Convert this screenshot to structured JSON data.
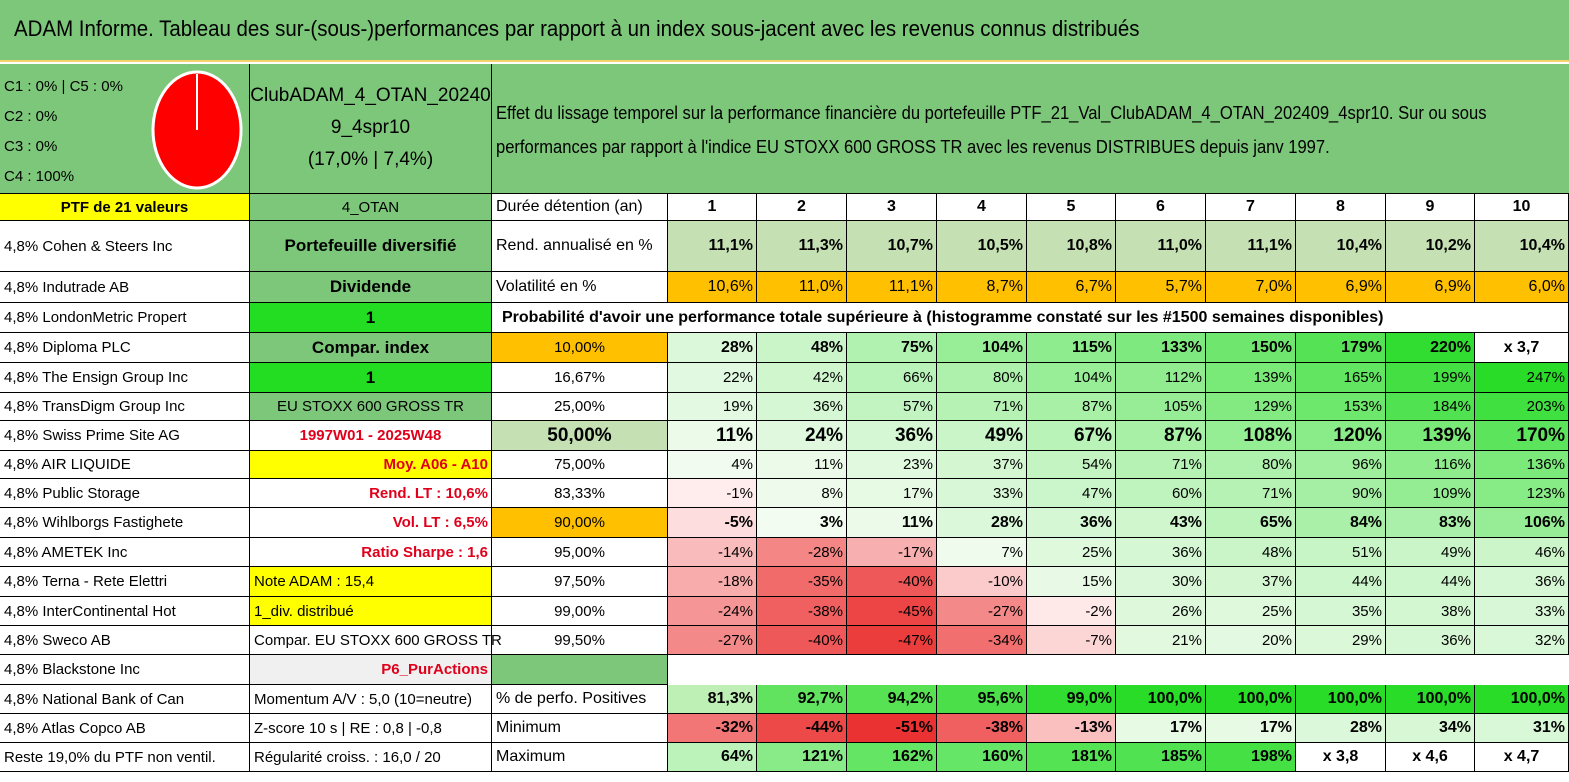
{
  "title": "ADAM Informe. Tableau des sur-(sous-)performances par rapport à un index sous-jacent avec les revenus connus distribués",
  "pie": {
    "labels": [
      "C1 : 0% | C5 : 0%",
      "C2 : 0%",
      "C3 : 0%",
      "C4 : 100%"
    ],
    "color": "#ff0000"
  },
  "portfolio": {
    "line1": "ClubADAM_4_OTAN_20240",
    "line2": "9_4spr10",
    "line3": "(17,0% | 7,4%)"
  },
  "description": "Effet du lissage temporel sur la performance financière du portefeuille PTF_21_Val_ClubADAM_4_OTAN_202409_4spr10. Sur ou sous performances par rapport à l'indice EU STOXX 600 GROSS TR avec les revenus DISTRIBUES depuis janv 1997.",
  "ptf_header": "PTF de 21 valeurs",
  "otan_header": "4_OTAN",
  "holdings": [
    "4,8% Cohen & Steers Inc",
    "4,8% Indutrade AB",
    "4,8% LondonMetric Propert",
    "4,8% Diploma PLC",
    "4,8% The Ensign Group Inc",
    "4,8% TransDigm Group Inc",
    "4,8% Swiss Prime Site AG",
    "4,8% AIR LIQUIDE",
    "4,8% Public Storage",
    "4,8% Wihlborgs Fastighete",
    "4,8% AMETEK Inc",
    "4,8% Terna - Rete Elettri",
    "4,8% InterContinental Hot",
    "4,8% Sweco AB",
    "4,8% Blackstone Inc",
    "4,8% National Bank of Can",
    "4,8% Atlas Copco AB",
    "Reste 19,0% du PTF non ventil."
  ],
  "info_col": [
    "Portefeuille diversifié",
    "Dividende",
    "1",
    "Compar. index",
    "1",
    "EU STOXX 600 GROSS TR",
    "1997W01 - 2025W48",
    "Moy. A06 - A10",
    "Rend. LT : 10,6%",
    "Vol. LT : 6,5%",
    "Ratio Sharpe : 1,6",
    "Note ADAM : 15,4",
    "1_div. distribué",
    "Compar. EU STOXX 600 GROSS TR",
    "P6_PurActions",
    "Momentum A/V : 5,0 (10=neutre)",
    "Z-score 10 s | RE : 0,8 | -0,8",
    "Régularité croiss. : 16,0 / 20"
  ],
  "years_label": "Durée détention (an)",
  "years": [
    "1",
    "2",
    "3",
    "4",
    "5",
    "6",
    "7",
    "8",
    "9",
    "10"
  ],
  "rend_label": "Rend. annualisé en %",
  "rend": [
    "11,1%",
    "11,3%",
    "10,7%",
    "10,5%",
    "10,8%",
    "11,0%",
    "11,1%",
    "10,4%",
    "10,2%",
    "10,4%"
  ],
  "vol_label": "Volatilité en %",
  "vol": [
    "10,6%",
    "11,0%",
    "11,1%",
    "8,7%",
    "6,7%",
    "5,7%",
    "7,0%",
    "6,9%",
    "6,9%",
    "6,0%"
  ],
  "prob_title": "Probabilité d'avoir une performance totale supérieure à (histogramme constaté sur les #1500 semaines disponibles)",
  "quantiles": [
    {
      "label": "10,00%",
      "values": [
        "28%",
        "48%",
        "75%",
        "104%",
        "115%",
        "133%",
        "150%",
        "179%",
        "220%",
        "x 3,7"
      ]
    },
    {
      "label": "16,67%",
      "values": [
        "22%",
        "42%",
        "66%",
        "80%",
        "104%",
        "112%",
        "139%",
        "165%",
        "199%",
        "247%"
      ]
    },
    {
      "label": "25,00%",
      "values": [
        "19%",
        "36%",
        "57%",
        "71%",
        "87%",
        "105%",
        "129%",
        "153%",
        "184%",
        "203%"
      ]
    },
    {
      "label": "50,00%",
      "values": [
        "11%",
        "24%",
        "36%",
        "49%",
        "67%",
        "87%",
        "108%",
        "120%",
        "139%",
        "170%"
      ]
    },
    {
      "label": "75,00%",
      "values": [
        "4%",
        "11%",
        "23%",
        "37%",
        "54%",
        "71%",
        "80%",
        "96%",
        "116%",
        "136%"
      ]
    },
    {
      "label": "83,33%",
      "values": [
        "-1%",
        "8%",
        "17%",
        "33%",
        "47%",
        "60%",
        "71%",
        "90%",
        "109%",
        "123%"
      ]
    },
    {
      "label": "90,00%",
      "values": [
        "-5%",
        "3%",
        "11%",
        "28%",
        "36%",
        "43%",
        "65%",
        "84%",
        "83%",
        "106%"
      ]
    },
    {
      "label": "95,00%",
      "values": [
        "-14%",
        "-28%",
        "-17%",
        "7%",
        "25%",
        "36%",
        "48%",
        "51%",
        "49%",
        "46%"
      ]
    },
    {
      "label": "97,50%",
      "values": [
        "-18%",
        "-35%",
        "-40%",
        "-10%",
        "15%",
        "30%",
        "37%",
        "44%",
        "44%",
        "36%"
      ]
    },
    {
      "label": "99,00%",
      "values": [
        "-24%",
        "-38%",
        "-45%",
        "-27%",
        "-2%",
        "26%",
        "25%",
        "35%",
        "38%",
        "33%"
      ]
    },
    {
      "label": "99,50%",
      "values": [
        "-27%",
        "-40%",
        "-47%",
        "-34%",
        "-7%",
        "21%",
        "20%",
        "29%",
        "36%",
        "32%"
      ]
    }
  ],
  "summary": [
    {
      "label": "% de perfo. Positives",
      "values": [
        "81,3%",
        "92,7%",
        "94,2%",
        "95,6%",
        "99,0%",
        "100,0%",
        "100,0%",
        "100,0%",
        "100,0%",
        "100,0%"
      ]
    },
    {
      "label": "Minimum",
      "values": [
        "-32%",
        "-44%",
        "-51%",
        "-38%",
        "-13%",
        "17%",
        "17%",
        "28%",
        "34%",
        "31%"
      ]
    },
    {
      "label": "Maximum",
      "values": [
        "64%",
        "121%",
        "162%",
        "160%",
        "181%",
        "185%",
        "198%",
        "x 3,8",
        "x 4,6",
        "x 4,7"
      ]
    }
  ]
}
